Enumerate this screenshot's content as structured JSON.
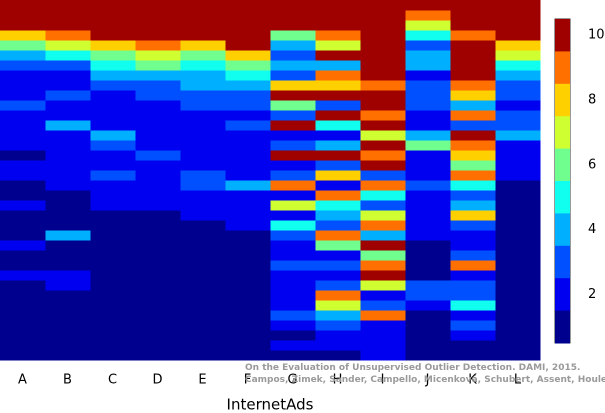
{
  "chart_data": {
    "type": "heatmap",
    "categories": [
      "A",
      "B",
      "C",
      "D",
      "E",
      "F",
      "G",
      "H",
      "I",
      "J",
      "K",
      "L"
    ],
    "xlabel": "InternetAds",
    "annotations": [
      "On the Evaluation of Unsupervised Outlier Detection. DAMI, 2015.",
      "Campos, Zimek, Sander, Campello, Micenková, Schubert, Assent, Houle"
    ],
    "values": [
      [
        10,
        10,
        10,
        8,
        6,
        4,
        3,
        2,
        2,
        2,
        3,
        2,
        2,
        2,
        2,
        1,
        2,
        2,
        1,
        1,
        2,
        1,
        1,
        1,
        2,
        1,
        1,
        2,
        1,
        1,
        1,
        1,
        1,
        1,
        1,
        1
      ],
      [
        10,
        10,
        10,
        9,
        7,
        5,
        3,
        2,
        2,
        3,
        2,
        2,
        4,
        2,
        2,
        2,
        2,
        2,
        2,
        1,
        1,
        1,
        1,
        4,
        1,
        1,
        1,
        2,
        2,
        1,
        1,
        1,
        1,
        1,
        1,
        1
      ],
      [
        10,
        10,
        10,
        10,
        8,
        6,
        5,
        4,
        3,
        2,
        2,
        2,
        2,
        4,
        3,
        2,
        2,
        3,
        2,
        2,
        2,
        1,
        1,
        1,
        1,
        1,
        1,
        1,
        1,
        1,
        1,
        1,
        1,
        1,
        1,
        1
      ],
      [
        10,
        10,
        10,
        10,
        9,
        7,
        6,
        4,
        3,
        3,
        2,
        2,
        2,
        2,
        2,
        3,
        2,
        2,
        2,
        2,
        2,
        1,
        1,
        1,
        1,
        1,
        1,
        1,
        1,
        1,
        1,
        1,
        1,
        1,
        1,
        1
      ],
      [
        10,
        10,
        10,
        10,
        8,
        6,
        5,
        4,
        4,
        3,
        3,
        2,
        2,
        2,
        2,
        2,
        2,
        3,
        3,
        2,
        2,
        2,
        1,
        1,
        1,
        1,
        1,
        1,
        1,
        1,
        1,
        1,
        1,
        1,
        1,
        1
      ],
      [
        10,
        10,
        10,
        10,
        10,
        8,
        6,
        5,
        4,
        3,
        3,
        2,
        3,
        2,
        2,
        2,
        2,
        2,
        4,
        2,
        2,
        2,
        2,
        1,
        1,
        1,
        1,
        1,
        1,
        1,
        1,
        1,
        1,
        1,
        1,
        1
      ],
      [
        10,
        10,
        10,
        6,
        4,
        3,
        4,
        3,
        8,
        10,
        6,
        3,
        10,
        2,
        3,
        10,
        2,
        3,
        9,
        2,
        7,
        2,
        5,
        3,
        2,
        2,
        3,
        2,
        2,
        2,
        2,
        3,
        2,
        1,
        2,
        1
      ],
      [
        10,
        10,
        10,
        9,
        7,
        10,
        4,
        9,
        8,
        10,
        3,
        10,
        5,
        2,
        4,
        10,
        3,
        8,
        2,
        9,
        5,
        4,
        3,
        9,
        6,
        2,
        3,
        2,
        3,
        9,
        7,
        4,
        3,
        2,
        2,
        1
      ],
      [
        10,
        10,
        10,
        10,
        10,
        10,
        10,
        10,
        9,
        10,
        10,
        9,
        10,
        7,
        10,
        9,
        10,
        3,
        9,
        5,
        3,
        7,
        9,
        4,
        10,
        6,
        9,
        10,
        7,
        2,
        3,
        9,
        2,
        2,
        2,
        2
      ],
      [
        10,
        9,
        7,
        5,
        3,
        4,
        4,
        2,
        3,
        3,
        3,
        2,
        2,
        4,
        6,
        2,
        2,
        2,
        3,
        2,
        2,
        2,
        2,
        2,
        1,
        1,
        1,
        1,
        3,
        3,
        2,
        1,
        1,
        1,
        1,
        1
      ],
      [
        10,
        10,
        10,
        9,
        10,
        10,
        10,
        10,
        9,
        8,
        4,
        9,
        3,
        10,
        9,
        8,
        6,
        9,
        5,
        3,
        4,
        8,
        3,
        2,
        2,
        3,
        9,
        2,
        3,
        3,
        5,
        2,
        3,
        2,
        1,
        1
      ],
      [
        10,
        10,
        10,
        10,
        8,
        7,
        5,
        4,
        3,
        3,
        2,
        3,
        3,
        4,
        2,
        2,
        2,
        2,
        1,
        1,
        1,
        1,
        1,
        1,
        1,
        1,
        1,
        1,
        1,
        1,
        1,
        1,
        1,
        1,
        1,
        1
      ]
    ],
    "colors": [
      "#00008f",
      "#0000f0",
      "#0050ff",
      "#00b0ff",
      "#10ffef",
      "#70ff8f",
      "#cfff30",
      "#ffd000",
      "#ff7000",
      "#ff1000",
      "#9f0000"
    ],
    "clim": [
      0.5,
      10.5
    ],
    "cticks": [
      2,
      4,
      6,
      8,
      10
    ]
  }
}
